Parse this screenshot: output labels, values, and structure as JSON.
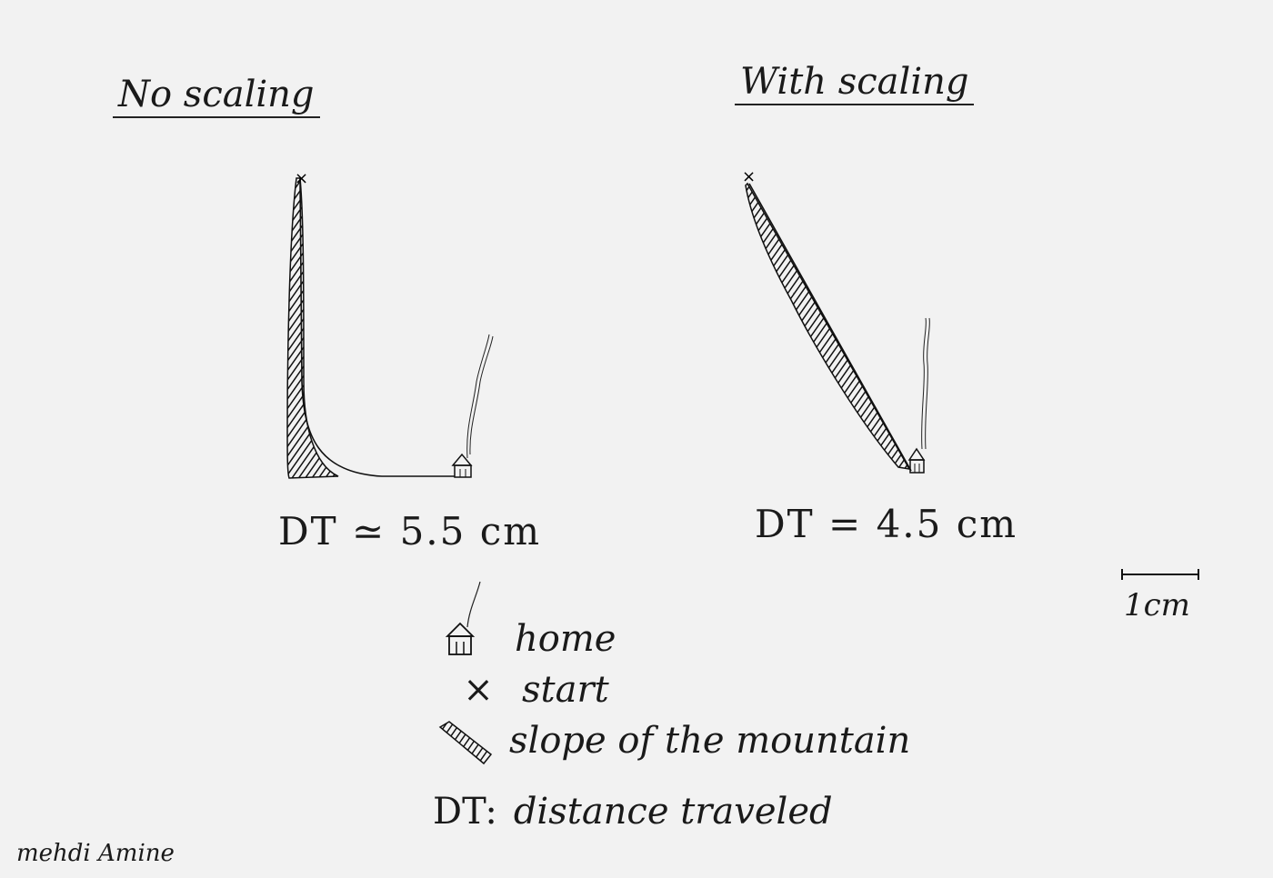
{
  "panels": {
    "left": {
      "title": "No scaling",
      "dt": "DT ≃ 5.5 cm"
    },
    "right": {
      "title": "With scaling",
      "dt": "DT = 4.5 cm"
    }
  },
  "scale_bar": {
    "label": "1cm"
  },
  "legend": {
    "home": {
      "symbol": "home-icon",
      "text": "home"
    },
    "start": {
      "symbol": "×",
      "text": "start"
    },
    "slope": {
      "symbol": "hatch-icon",
      "text": "slope of the mountain"
    },
    "dt": {
      "symbol": "DT:",
      "text": "distance traveled"
    }
  },
  "signature": "mehdi Amine",
  "colors": {
    "ink": "#1a1a1a",
    "paper": "#f2f2f2"
  }
}
